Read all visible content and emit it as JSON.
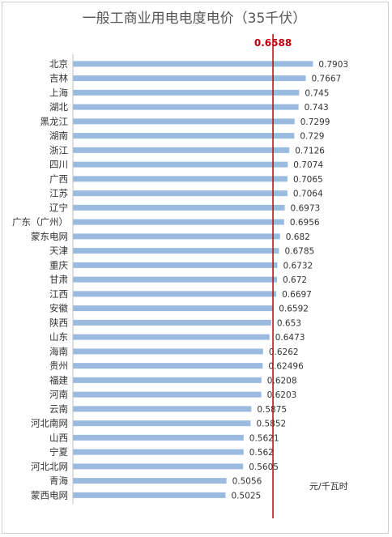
{
  "chart_data": {
    "type": "bar",
    "orientation": "horizontal",
    "title": "一般工商业用电电度电价（35千伏）",
    "unit_label": "元/千瓦时",
    "categories": [
      "北京",
      "吉林",
      "上海",
      "湖北",
      "黑龙江",
      "湖南",
      "浙江",
      "四川",
      "广西",
      "江苏",
      "辽宁",
      "广东（广州）",
      "蒙东电网",
      "天津",
      "重庆",
      "甘肃",
      "江西",
      "安徽",
      "陕西",
      "山东",
      "海南",
      "贵州",
      "福建",
      "河南",
      "云南",
      "河北南网",
      "山西",
      "宁夏",
      "河北北网",
      "青海",
      "蒙西电网"
    ],
    "values": [
      0.7903,
      0.7667,
      0.745,
      0.743,
      0.7299,
      0.729,
      0.7126,
      0.7074,
      0.7065,
      0.7064,
      0.6973,
      0.6956,
      0.682,
      0.6785,
      0.6732,
      0.672,
      0.6697,
      0.6592,
      0.653,
      0.6473,
      0.6262,
      0.62496,
      0.6208,
      0.6203,
      0.5875,
      0.5852,
      0.5621,
      0.562,
      0.5605,
      0.5056,
      0.5025
    ],
    "value_labels": [
      "0.7903",
      "0.7667",
      "0.745",
      "0.743",
      "0.7299",
      "0.729",
      "0.7126",
      "0.7074",
      "0.7065",
      "0.7064",
      "0.6973",
      "0.6956",
      "0.682",
      "0.6785",
      "0.6732",
      "0.672",
      "0.6697",
      "0.6592",
      "0.653",
      "0.6473",
      "0.6262",
      "0.62496",
      "0.6208",
      "0.6203",
      "0.5875",
      "0.5852",
      "0.5621",
      "0.562",
      "0.5605",
      "0.5056",
      "0.5025"
    ],
    "reference_line": {
      "value": 0.6588,
      "label": "0.6588",
      "color": "#c0000e"
    },
    "bar_color": "#9bbadf",
    "xlim": [
      0,
      0.8
    ],
    "grid": false,
    "legend": "none"
  }
}
